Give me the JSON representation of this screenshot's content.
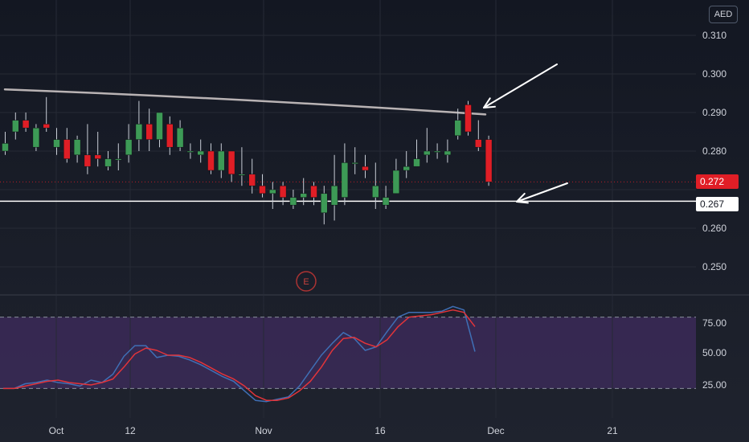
{
  "currency": "AED",
  "last_price_tag": "0.272",
  "line_price_tag": "0.267",
  "earnings_marker": "E",
  "price_axis_labels": [
    "0.310",
    "0.300",
    "0.290",
    "0.280",
    "0.260",
    "0.250"
  ],
  "osc_axis_labels": [
    "75.00",
    "50.00",
    "25.00"
  ],
  "time_axis_labels": [
    "Oct",
    "12",
    "Nov",
    "16",
    "Dec",
    "21"
  ],
  "colors": {
    "up": "#3d9a56",
    "down": "#e01e26",
    "k_line": "#3f6fb5",
    "d_line": "#e2343a",
    "band": "#3b2a58",
    "trendline": "#b9b3b4",
    "support": "#ffffff",
    "arrow": "#ffffff"
  },
  "chart_data": [
    {
      "type": "candlestick",
      "ylim": [
        0.2425,
        0.3145
      ],
      "x": [
        "Sep 24",
        "Sep 25",
        "Sep 28",
        "Sep 29",
        "Sep 30",
        "Oct 1",
        "Oct 2",
        "Oct 5",
        "Oct 6",
        "Oct 7",
        "Oct 8",
        "Oct 9",
        "Oct 12",
        "Oct 13",
        "Oct 14",
        "Oct 15",
        "Oct 16",
        "Oct 19",
        "Oct 20",
        "Oct 21",
        "Oct 22",
        "Oct 23",
        "Oct 26",
        "Oct 27",
        "Oct 28",
        "Oct 29",
        "Oct 30",
        "Nov 2",
        "Nov 3",
        "Nov 4",
        "Nov 5",
        "Nov 6",
        "Nov 9",
        "Nov 10",
        "Nov 11",
        "Nov 12",
        "Nov 13",
        "Nov 16",
        "Nov 17",
        "Nov 18",
        "Nov 19",
        "Nov 20",
        "Nov 23",
        "Nov 24",
        "Nov 25",
        "Nov 26",
        "Nov 27",
        "Nov 30"
      ],
      "open": [
        0.28,
        0.285,
        0.288,
        0.281,
        0.287,
        0.281,
        0.283,
        0.279,
        0.279,
        0.279,
        0.276,
        0.278,
        0.279,
        0.283,
        0.287,
        0.283,
        0.287,
        0.281,
        0.28,
        0.279,
        0.28,
        0.275,
        0.28,
        0.274,
        0.274,
        0.271,
        0.269,
        0.271,
        0.266,
        0.268,
        0.271,
        0.264,
        0.266,
        0.268,
        0.277,
        0.276,
        0.268,
        0.266,
        0.269,
        0.275,
        0.276,
        0.279,
        0.28,
        0.279,
        0.284,
        0.292,
        0.283,
        0.283
      ],
      "close": [
        0.282,
        0.288,
        0.286,
        0.286,
        0.286,
        0.283,
        0.278,
        0.283,
        0.276,
        0.278,
        0.278,
        0.278,
        0.283,
        0.287,
        0.283,
        0.29,
        0.281,
        0.286,
        0.28,
        0.28,
        0.275,
        0.28,
        0.274,
        0.274,
        0.271,
        0.269,
        0.27,
        0.268,
        0.268,
        0.269,
        0.268,
        0.269,
        0.271,
        0.277,
        0.277,
        0.275,
        0.271,
        0.268,
        0.275,
        0.276,
        0.278,
        0.28,
        0.28,
        0.28,
        0.288,
        0.285,
        0.281,
        0.272
      ],
      "high": [
        0.285,
        0.29,
        0.29,
        0.287,
        0.294,
        0.286,
        0.286,
        0.284,
        0.287,
        0.285,
        0.28,
        0.282,
        0.287,
        0.293,
        0.291,
        0.29,
        0.289,
        0.288,
        0.282,
        0.283,
        0.282,
        0.282,
        0.28,
        0.281,
        0.278,
        0.274,
        0.272,
        0.272,
        0.27,
        0.273,
        0.272,
        0.271,
        0.279,
        0.282,
        0.281,
        0.279,
        0.277,
        0.271,
        0.278,
        0.28,
        0.283,
        0.286,
        0.282,
        0.283,
        0.291,
        0.293,
        0.288,
        0.284
      ],
      "low": [
        0.279,
        0.283,
        0.285,
        0.28,
        0.285,
        0.279,
        0.277,
        0.277,
        0.274,
        0.276,
        0.275,
        0.275,
        0.277,
        0.28,
        0.28,
        0.281,
        0.279,
        0.28,
        0.278,
        0.277,
        0.274,
        0.273,
        0.272,
        0.271,
        0.269,
        0.268,
        0.265,
        0.266,
        0.265,
        0.266,
        0.266,
        0.261,
        0.262,
        0.266,
        0.274,
        0.273,
        0.265,
        0.265,
        0.269,
        0.273,
        0.276,
        0.277,
        0.278,
        0.277,
        0.283,
        0.284,
        0.28,
        0.271
      ],
      "trendline": [
        [
          0.296,
          0.2895
        ]
      ],
      "support_level": 0.267,
      "last_price": 0.272
    },
    {
      "type": "line",
      "ylim": [
        11.66,
        100
      ],
      "bands": [
        80,
        20
      ],
      "series": [
        {
          "values": [
            20,
            20,
            24,
            25,
            27,
            25,
            24,
            22,
            27,
            25,
            32,
            47,
            56,
            56,
            46,
            48,
            47,
            44,
            40,
            35,
            30,
            26,
            18,
            10,
            9,
            11,
            13,
            22,
            35,
            48,
            58,
            67,
            62,
            52,
            55,
            68,
            80,
            84,
            84,
            84,
            85,
            89,
            86,
            51
          ]
        },
        {
          "values": [
            20,
            20,
            22,
            24,
            26,
            27,
            25,
            24,
            23,
            25,
            28,
            38,
            49,
            54,
            52,
            48,
            48,
            46,
            42,
            37,
            32,
            28,
            22,
            14,
            10,
            10,
            12,
            18,
            26,
            38,
            52,
            62,
            63,
            58,
            55,
            61,
            72,
            80,
            81,
            82,
            84,
            86,
            84,
            72
          ]
        }
      ]
    }
  ]
}
